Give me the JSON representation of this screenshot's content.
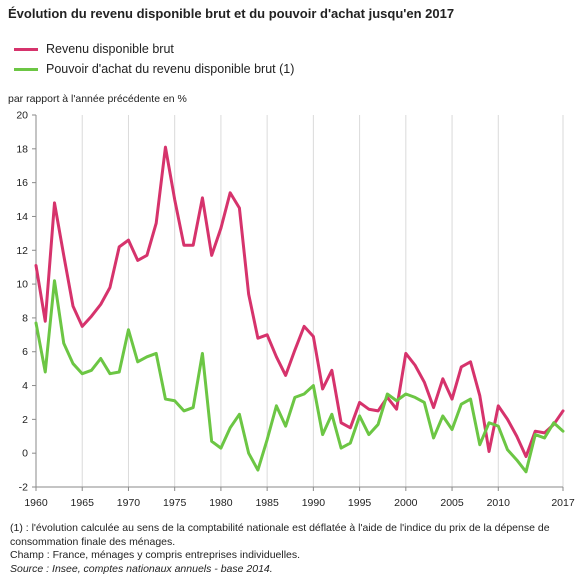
{
  "title": "Évolution du revenu disponible brut et du pouvoir d'achat jusqu'en 2017",
  "notes": [
    "(1) : l'évolution calculée au sens de la comptabilité nationale est déflatée à l'aide de l'indice du prix de la dépense de consommation finale des ménages.",
    "Champ : France, ménages y compris entreprises individuelles."
  ],
  "source": "Source : Insee, comptes nationaux annuels - base 2014.",
  "chart_data": {
    "type": "line",
    "title": "Évolution du revenu disponible brut et du pouvoir d'achat jusqu'en 2017",
    "ylabel": "par rapport à l'année précédente en %",
    "xlabel": "",
    "xlim": [
      1960,
      2017
    ],
    "ylim": [
      -2,
      20
    ],
    "x_ticks": [
      1960,
      1965,
      1970,
      1975,
      1980,
      1985,
      1990,
      1995,
      2000,
      2005,
      2010,
      2017
    ],
    "y_ticks": [
      -2,
      0,
      2,
      4,
      6,
      8,
      10,
      12,
      14,
      16,
      18,
      20
    ],
    "grid": {
      "vertical": true,
      "horizontal": false
    },
    "legend_position": "top-left",
    "x": [
      1960,
      1961,
      1962,
      1963,
      1964,
      1965,
      1966,
      1967,
      1968,
      1969,
      1970,
      1971,
      1972,
      1973,
      1974,
      1975,
      1976,
      1977,
      1978,
      1979,
      1980,
      1981,
      1982,
      1983,
      1984,
      1985,
      1986,
      1987,
      1988,
      1989,
      1990,
      1991,
      1992,
      1993,
      1994,
      1995,
      1996,
      1997,
      1998,
      1999,
      2000,
      2001,
      2002,
      2003,
      2004,
      2005,
      2006,
      2007,
      2008,
      2009,
      2010,
      2011,
      2012,
      2013,
      2014,
      2015,
      2016,
      2017
    ],
    "series": [
      {
        "name": "Revenu disponible brut",
        "color": "#d6336c",
        "values": [
          11.1,
          7.8,
          14.8,
          11.7,
          8.7,
          7.5,
          8.1,
          8.8,
          9.8,
          12.2,
          12.6,
          11.4,
          11.7,
          13.6,
          18.1,
          15.0,
          12.3,
          12.3,
          15.1,
          11.7,
          13.3,
          15.4,
          14.5,
          9.4,
          6.8,
          7.0,
          5.7,
          4.6,
          6.1,
          7.5,
          6.9,
          3.8,
          4.9,
          1.8,
          1.5,
          3.0,
          2.6,
          2.5,
          3.3,
          2.6,
          5.9,
          5.2,
          4.2,
          2.7,
          4.4,
          3.2,
          5.1,
          5.4,
          3.4,
          0.1,
          2.8,
          2.0,
          1.0,
          -0.2,
          1.3,
          1.2,
          1.7,
          2.5
        ]
      },
      {
        "name": "Pouvoir d'achat du revenu disponible brut (1)",
        "color": "#6cc644",
        "values": [
          7.7,
          4.8,
          10.2,
          6.5,
          5.3,
          4.7,
          4.9,
          5.6,
          4.7,
          4.8,
          7.3,
          5.4,
          5.7,
          5.9,
          3.2,
          3.1,
          2.5,
          2.7,
          5.9,
          0.7,
          0.3,
          1.5,
          2.3,
          0.0,
          -1.0,
          0.8,
          2.8,
          1.6,
          3.3,
          3.5,
          4.0,
          1.1,
          2.3,
          0.3,
          0.6,
          2.2,
          1.1,
          1.7,
          3.5,
          3.1,
          3.5,
          3.3,
          3.0,
          0.9,
          2.2,
          1.4,
          2.9,
          3.2,
          0.5,
          1.8,
          1.6,
          0.2,
          -0.4,
          -1.1,
          1.1,
          0.9,
          1.8,
          1.3
        ]
      }
    ]
  }
}
